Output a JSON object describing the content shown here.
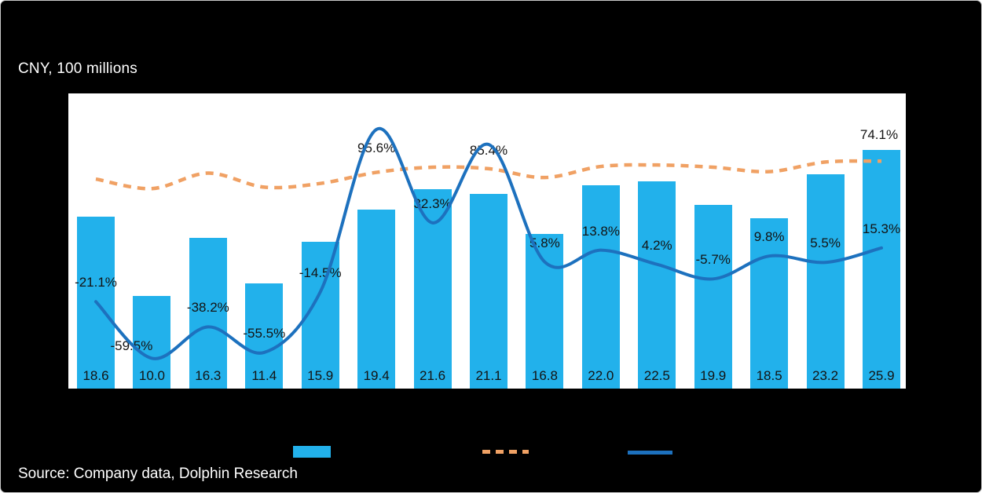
{
  "header": {
    "unit_label": "CNY, 100 millions"
  },
  "source": {
    "text": "Source: Company data, Dolphin Research"
  },
  "chart_data": {
    "type": "combo-bar-line",
    "unit_label": "CNY, 100 millions",
    "grid": false,
    "legend_position": "bottom",
    "ylim_primary": [
      0,
      32
    ],
    "ylim_secondary_pct": [
      -80,
      120
    ],
    "series": [
      {
        "id": "revenue_bars",
        "type": "bar",
        "color": "#22B1EB",
        "values": [
          18.6,
          10.0,
          16.3,
          11.4,
          15.9,
          19.4,
          21.6,
          21.1,
          16.8,
          22.0,
          22.5,
          19.9,
          18.5,
          23.2,
          25.9
        ],
        "labels": [
          "18.6",
          "10.0",
          "16.3",
          "11.4",
          "15.9",
          "19.4",
          "21.6",
          "21.1",
          "16.8",
          "22.0",
          "22.5",
          "19.9",
          "18.5",
          "23.2",
          "25.9"
        ]
      },
      {
        "id": "yoy_growth_line",
        "type": "line",
        "color": "#1D71BE",
        "values_pct": [
          -21.1,
          -59.5,
          -38.2,
          -55.5,
          -14.5,
          95.6,
          32.3,
          85.4,
          5.8,
          13.8,
          4.2,
          -5.7,
          9.8,
          5.5,
          15.3
        ],
        "labels": [
          "-21.1%",
          "-59.5%",
          "-38.2%",
          "-55.5%",
          "-14.5%",
          "95.6%",
          "32.3%",
          "85.4%",
          "5.8%",
          "13.8%",
          "4.2%",
          "-5.7%",
          "9.8%",
          "5.5%",
          "15.3%"
        ]
      },
      {
        "id": "gross_margin_line",
        "type": "dashed_line",
        "color": "#F0A164",
        "values_pct": [
          62.0,
          55.5,
          66.0,
          56.5,
          59.0,
          66.5,
          70.0,
          69.0,
          63.0,
          70.5,
          71.5,
          70.0,
          67.0,
          73.5,
          74.1
        ],
        "labels": [
          "",
          "",
          "",
          "",
          "",
          "",
          "",
          "",
          "",
          "",
          "",
          "",
          "",
          "",
          "74.1%"
        ]
      }
    ]
  },
  "legend": {
    "items": [
      {
        "swatch": "bar"
      },
      {
        "swatch": "dashed_line"
      },
      {
        "swatch": "line"
      }
    ]
  }
}
